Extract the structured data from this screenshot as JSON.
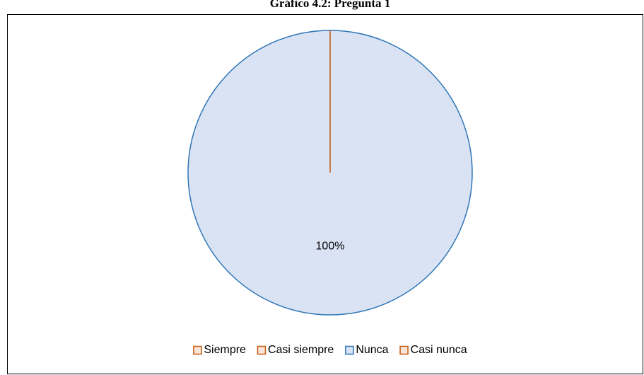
{
  "chart_data": {
    "type": "pie",
    "title": "Gráfico 4.2: Pregunta 1",
    "categories": [
      "Siempre",
      "Casi siempre",
      "Nunca",
      "Casi nunca"
    ],
    "values": [
      0,
      0,
      100,
      0
    ],
    "value_labels": [
      null,
      null,
      "100%",
      null
    ],
    "colors": [
      "#fbe5d6",
      "#fbe5d6",
      "#dae3f3",
      "#fbe5d6"
    ],
    "edge_colors": [
      "#c55a11",
      "#c55a11",
      "#2e75b6",
      "#c55a11"
    ],
    "legend": "bottom"
  }
}
